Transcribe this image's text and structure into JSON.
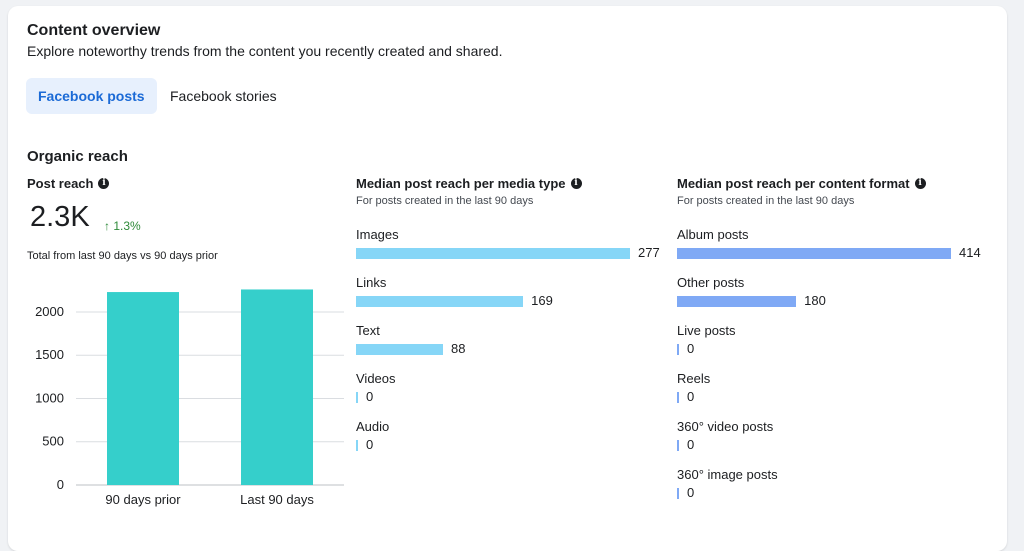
{
  "header": {
    "title": "Content overview",
    "subtitle": "Explore noteworthy trends from the content you recently created and shared."
  },
  "tabs": [
    {
      "label": "Facebook posts",
      "active": true
    },
    {
      "label": "Facebook stories",
      "active": false
    }
  ],
  "organic_reach": {
    "title": "Organic reach",
    "post_reach": {
      "label": "Post reach",
      "value": "2.3K",
      "trend_arrow": "↑",
      "trend": "1.3%",
      "note": "Total from last 90 days vs 90 days prior"
    },
    "media_type": {
      "title": "Median post reach per media type",
      "subtitle": "For posts created in the last 90 days",
      "color": "#86d6f7"
    },
    "content_format": {
      "title": "Median post reach per content format",
      "subtitle": "For posts created in the last 90 days",
      "color": "#7fa9f5"
    }
  },
  "colors": {
    "bar_teal": "#35cfcb",
    "accent_blue": "#1b6ad6",
    "trend_green": "#2e8a39"
  },
  "chart_data": [
    {
      "type": "bar",
      "categories": [
        "90 days prior",
        "Last 90 days"
      ],
      "values": [
        2230,
        2260
      ],
      "ylim": [
        0,
        2300
      ],
      "yticks": [
        0,
        500,
        1000,
        1500,
        2000
      ],
      "grid": true,
      "title": "",
      "xlabel": "",
      "ylabel": ""
    },
    {
      "type": "bar",
      "orientation": "horizontal",
      "categories": [
        "Images",
        "Links",
        "Text",
        "Videos",
        "Audio"
      ],
      "values": [
        277,
        169,
        88,
        0,
        0
      ],
      "title": "Median post reach per media type"
    },
    {
      "type": "bar",
      "orientation": "horizontal",
      "categories": [
        "Album posts",
        "Other posts",
        "Live posts",
        "Reels",
        "360° video posts",
        "360° image posts"
      ],
      "values": [
        414,
        180,
        0,
        0,
        0,
        0
      ],
      "title": "Median post reach per content format"
    }
  ]
}
